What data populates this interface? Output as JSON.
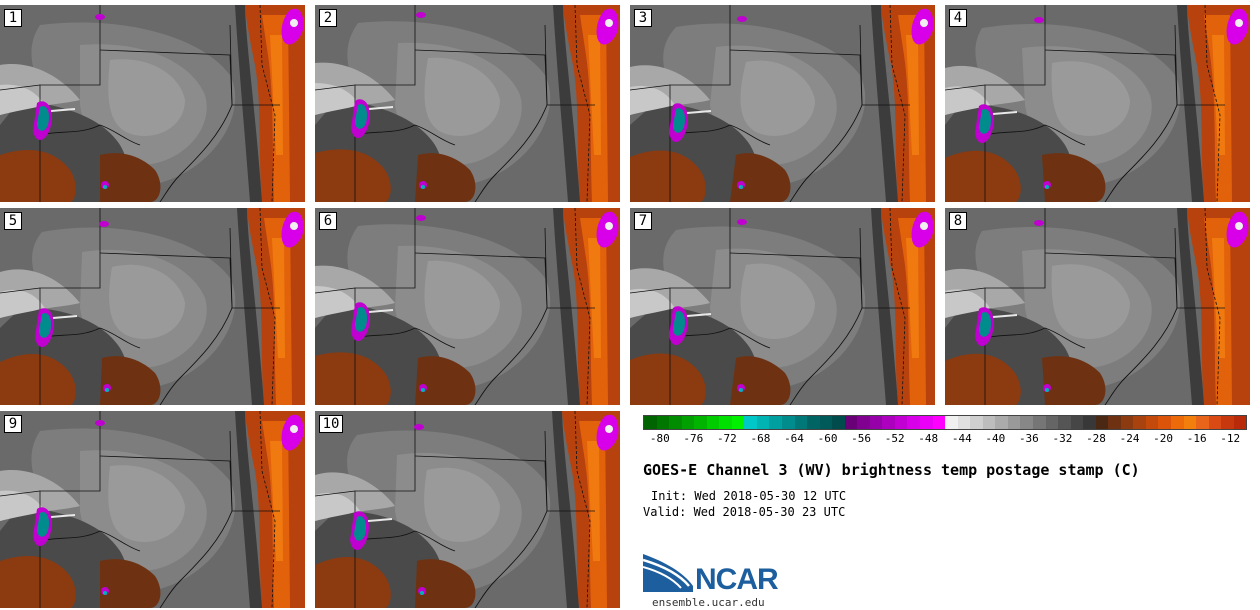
{
  "panels": [
    {
      "label": "1",
      "variant": 0
    },
    {
      "label": "2",
      "variant": 1
    },
    {
      "label": "3",
      "variant": 2
    },
    {
      "label": "4",
      "variant": 3
    },
    {
      "label": "5",
      "variant": 4
    },
    {
      "label": "6",
      "variant": 1
    },
    {
      "label": "7",
      "variant": 2
    },
    {
      "label": "8",
      "variant": 3
    },
    {
      "label": "9",
      "variant": 0
    },
    {
      "label": "10",
      "variant": 4
    }
  ],
  "colorbar": {
    "colors": [
      "#006400",
      "#007800",
      "#008c00",
      "#00a000",
      "#00b400",
      "#00cc00",
      "#00e000",
      "#00f000",
      "#00c8c8",
      "#00b4b4",
      "#00a0a0",
      "#008c8c",
      "#007878",
      "#006464",
      "#005a5a",
      "#004c4c",
      "#6a0078",
      "#800090",
      "#9600a8",
      "#ac00be",
      "#c200d4",
      "#d800e8",
      "#ea00f6",
      "#ff00ff",
      "#f0f0f0",
      "#e0e0e0",
      "#cfcfcf",
      "#bdbdbd",
      "#ababab",
      "#999999",
      "#878787",
      "#767676",
      "#656565",
      "#555555",
      "#464646",
      "#383838",
      "#4a2814",
      "#6e3212",
      "#8c3a10",
      "#a8420e",
      "#c44a0c",
      "#dc540a",
      "#ec6a0a",
      "#f27f0c",
      "#e8641a",
      "#d94a14",
      "#c8380e",
      "#b82a0a"
    ],
    "ticks": [
      "-80",
      "-76",
      "-72",
      "-68",
      "-64",
      "-60",
      "-56",
      "-52",
      "-48",
      "-44",
      "-40",
      "-36",
      "-32",
      "-28",
      "-24",
      "-20",
      "-16",
      "-12"
    ],
    "min": -82,
    "max": -10
  },
  "title": "GOES-E Channel 3 (WV) brightness temp postage stamp (C)",
  "init": "Init: Wed 2018-05-30 12 UTC",
  "valid": "Valid: Wed 2018-05-30 23 UTC",
  "logo": {
    "text": "NCAR",
    "url": "ensemble.ucar.edu"
  }
}
